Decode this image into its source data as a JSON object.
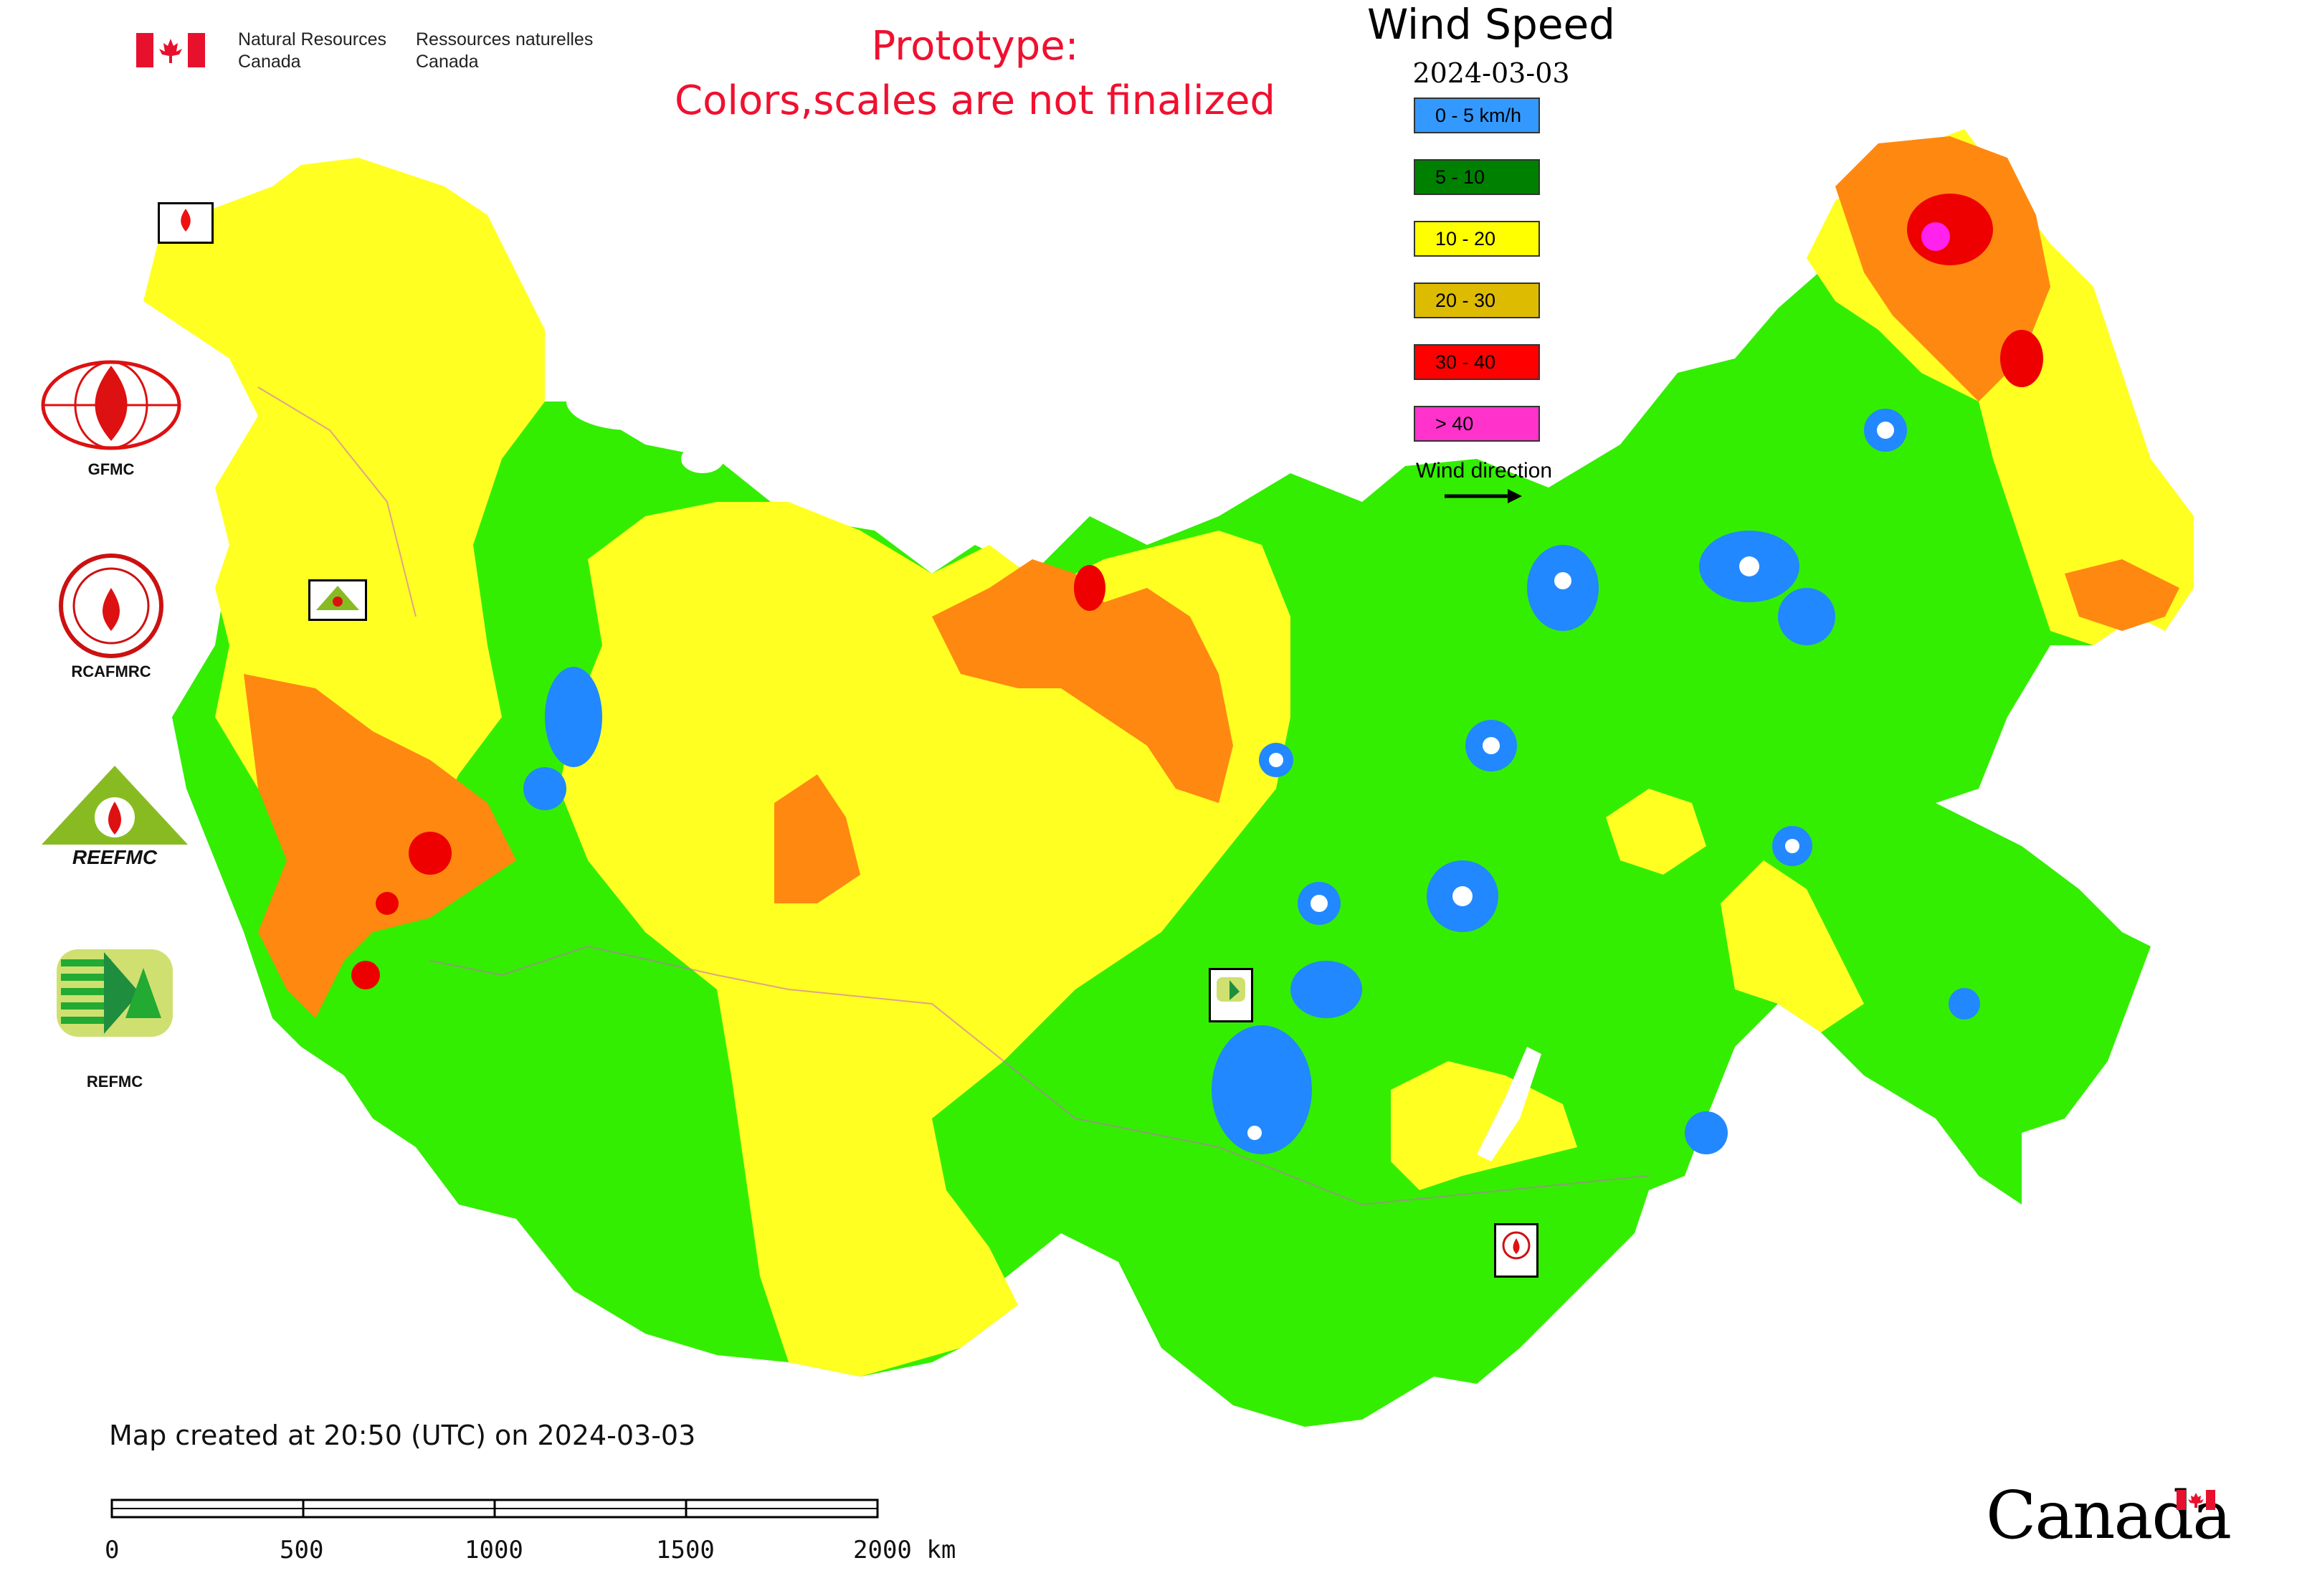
{
  "header": {
    "government_en": [
      "Natural Resources",
      "Canada"
    ],
    "government_fr": [
      "Ressources naturelles",
      "Canada"
    ],
    "notice_line1": "Prototype:",
    "notice_line2": "Colors,scales are not finalized"
  },
  "map": {
    "title": "Wind Speed",
    "date": "2024-03-03",
    "legend": [
      {
        "label": "0 - 5 km/h",
        "color": "#3399ff"
      },
      {
        "label": "5 - 10",
        "color": "#008000"
      },
      {
        "label": "10 - 20",
        "color": "#ffff00"
      },
      {
        "label": "20 - 30",
        "color": "#ddbb00"
      },
      {
        "label": "30 - 40",
        "color": "#ff0000"
      },
      {
        "label": "> 40",
        "color": "#ff33cc"
      }
    ],
    "direction_label": "Wind direction",
    "region_colors": {
      "green": "#33ee00",
      "yellow": "#ffff22",
      "orange": "#ff8811",
      "red": "#ee0000",
      "blue": "#2288ff",
      "magenta": "#ff22ee",
      "border": "#cc66cc"
    }
  },
  "logos": [
    {
      "name": "GFMC",
      "label": "GFMC"
    },
    {
      "name": "RCAFMRC",
      "label": "RCAFMRC"
    },
    {
      "name": "REEFMC",
      "label": "REEFMC"
    },
    {
      "name": "REFMC",
      "label": "REFMC"
    }
  ],
  "footer": {
    "created": "Map created at 20:50 (UTC) on 2024-03-03",
    "scale": {
      "ticks": [
        "0",
        "500",
        "1000",
        "1500",
        "2000 km"
      ]
    },
    "wordmark": "Canada"
  }
}
